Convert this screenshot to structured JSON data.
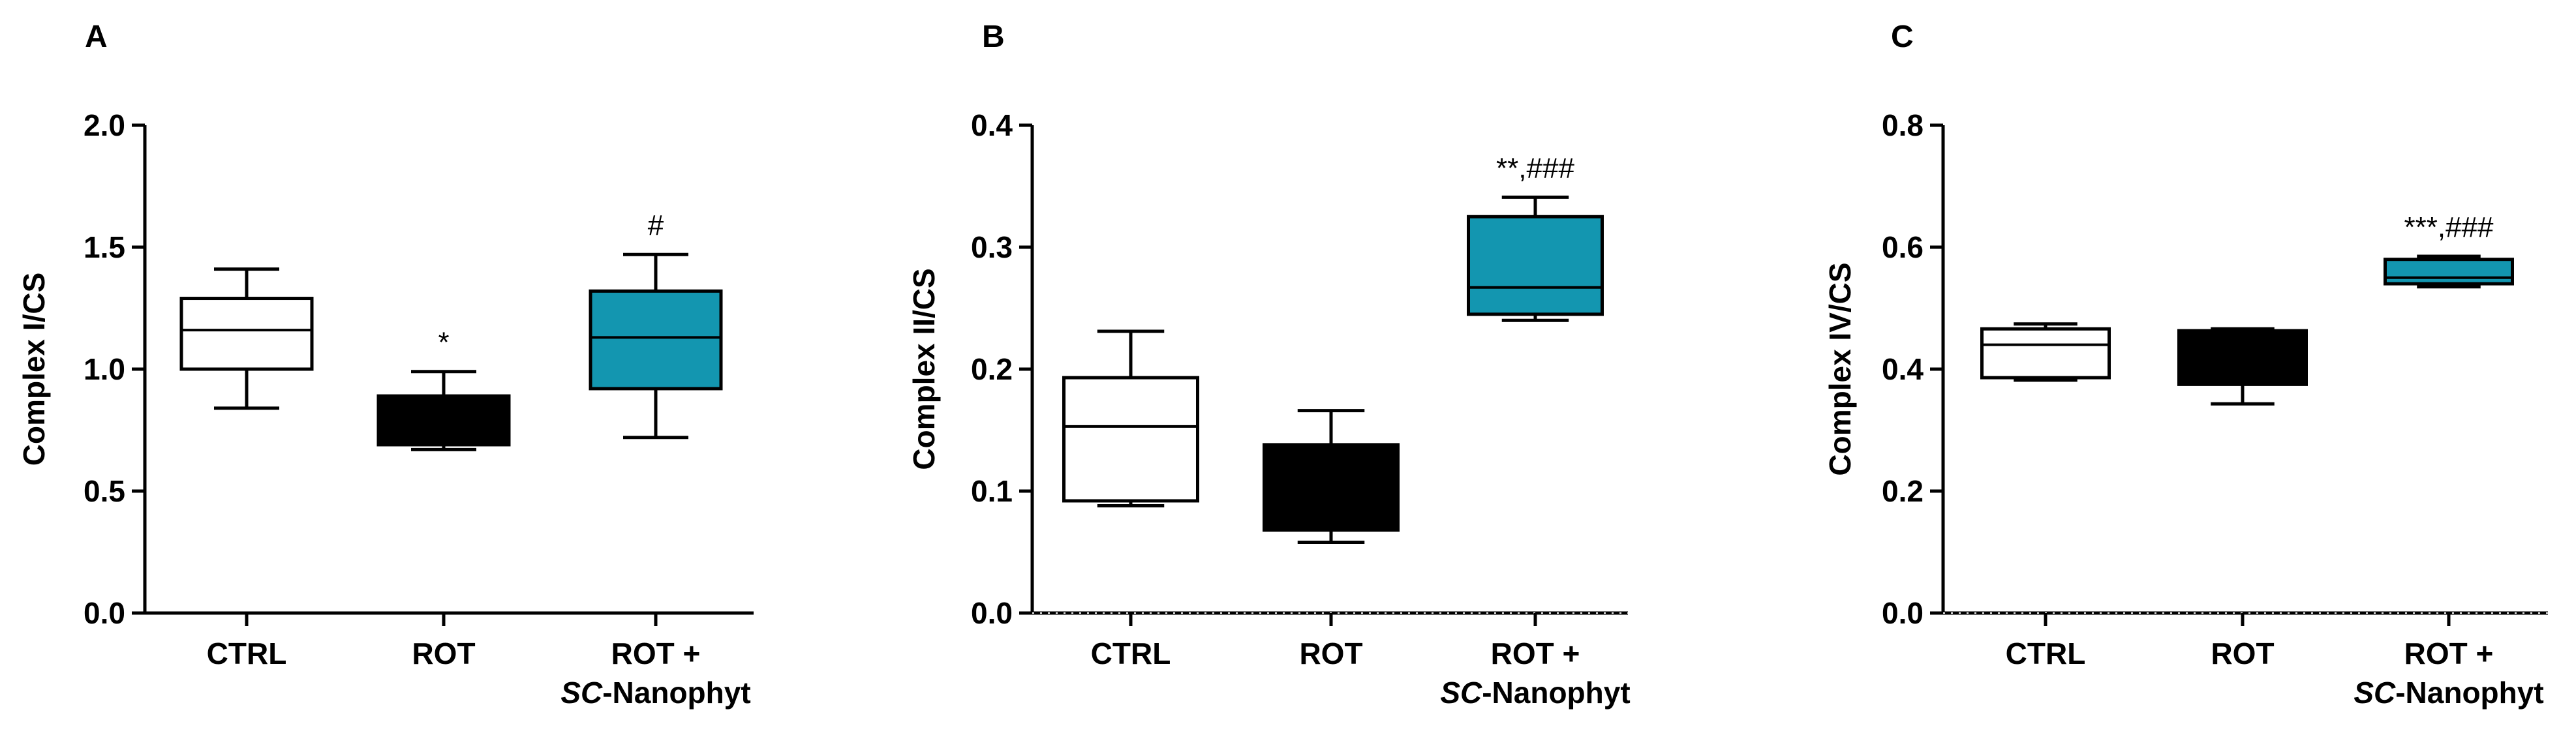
{
  "figure": {
    "categories": [
      "CTRL",
      "ROT",
      "ROT +"
    ],
    "category_sublabel": {
      "italic_part": "SC",
      "rest": "-Nanophyt"
    },
    "colors": {
      "CTRL": "#ffffff",
      "ROT": "#000000",
      "ROT + SC-Nanophyt": "#1396b0"
    }
  },
  "chart_data": [
    {
      "type": "box",
      "panel": "A",
      "ylabel": "Complex I/CS",
      "ylim": [
        0.0,
        2.0
      ],
      "yticks": [
        "0.0",
        "0.5",
        "1.0",
        "1.5",
        "2.0"
      ],
      "zero_line_dotted": false,
      "categories": [
        "CTRL",
        "ROT",
        "ROT + SC-Nanophyt"
      ],
      "boxes": [
        {
          "min": 0.84,
          "q1": 1.0,
          "median": 1.16,
          "q3": 1.29,
          "max": 1.41,
          "annotation": ""
        },
        {
          "min": 0.67,
          "q1": 0.69,
          "median": 0.69,
          "q3": 0.89,
          "max": 0.99,
          "annotation": "*"
        },
        {
          "min": 0.72,
          "q1": 0.92,
          "median": 1.13,
          "q3": 1.32,
          "max": 1.47,
          "annotation": "#"
        }
      ]
    },
    {
      "type": "box",
      "panel": "B",
      "ylabel": "Complex II/CS",
      "ylim": [
        0.0,
        0.4
      ],
      "yticks": [
        "0.0",
        "0.1",
        "0.2",
        "0.3",
        "0.4"
      ],
      "zero_line_dotted": true,
      "categories": [
        "CTRL",
        "ROT",
        "ROT + SC-Nanophyt"
      ],
      "boxes": [
        {
          "min": 0.088,
          "q1": 0.092,
          "median": 0.153,
          "q3": 0.193,
          "max": 0.231,
          "annotation": ""
        },
        {
          "min": 0.058,
          "q1": 0.068,
          "median": 0.068,
          "q3": 0.138,
          "max": 0.166,
          "annotation": ""
        },
        {
          "min": 0.24,
          "q1": 0.245,
          "median": 0.267,
          "q3": 0.325,
          "max": 0.341,
          "annotation": "**,###"
        }
      ]
    },
    {
      "type": "box",
      "panel": "C",
      "ylabel": "Complex IV/CS",
      "ylim": [
        0.0,
        0.8
      ],
      "yticks": [
        "0.0",
        "0.2",
        "0.4",
        "0.6",
        "0.8"
      ],
      "zero_line_dotted": true,
      "categories": [
        "CTRL",
        "ROT",
        "ROT + SC-Nanophyt"
      ],
      "boxes": [
        {
          "min": 0.382,
          "q1": 0.386,
          "median": 0.44,
          "q3": 0.466,
          "max": 0.474,
          "annotation": ""
        },
        {
          "min": 0.343,
          "q1": 0.375,
          "median": 0.375,
          "q3": 0.463,
          "max": 0.466,
          "annotation": ""
        },
        {
          "min": 0.535,
          "q1": 0.54,
          "median": 0.55,
          "q3": 0.58,
          "max": 0.585,
          "annotation": "***,###"
        }
      ]
    }
  ]
}
